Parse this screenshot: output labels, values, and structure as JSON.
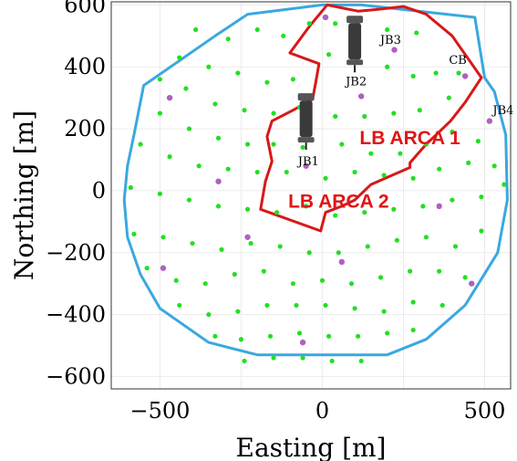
{
  "chart_data": {
    "type": "scatter",
    "xlabel": "Easting [m]",
    "ylabel": "Northing [m]",
    "xlim": [
      -650,
      580
    ],
    "ylim": [
      -640,
      610
    ],
    "x_ticks": [
      -500,
      0,
      500
    ],
    "y_ticks": [
      600,
      400,
      200,
      0,
      -200,
      -400,
      -600
    ],
    "grid": true,
    "colors": {
      "detection_units": "#22e022",
      "special_units": "#b060c0",
      "footprint_outline": "#3aa8e0",
      "zone_outline": "#d81818",
      "label_red": "#e01515"
    },
    "region_labels": [
      {
        "text": "LB ARCA 1",
        "x": 115,
        "y": 150
      },
      {
        "text": "LB ARCA 2",
        "x": -105,
        "y": -55
      }
    ],
    "annotations": [
      {
        "text": "JB3",
        "x": 178,
        "y": 475
      },
      {
        "text": "CB",
        "x": 390,
        "y": 410
      },
      {
        "text": "JB2",
        "x": 72,
        "y": 340
      },
      {
        "text": "JB4",
        "x": 525,
        "y": 248
      },
      {
        "text": "JB1",
        "x": -75,
        "y": 82
      }
    ],
    "series": [
      {
        "name": "",
        "marker": "green-dot",
        "points": [
          [
            -390,
            520
          ],
          [
            -290,
            490
          ],
          [
            -200,
            520
          ],
          [
            -120,
            500
          ],
          [
            -40,
            540
          ],
          [
            40,
            540
          ],
          [
            110,
            540
          ],
          [
            200,
            520
          ],
          [
            290,
            510
          ],
          [
            -440,
            430
          ],
          [
            -350,
            400
          ],
          [
            -260,
            380
          ],
          [
            -170,
            350
          ],
          [
            -90,
            360
          ],
          [
            20,
            440
          ],
          [
            110,
            430
          ],
          [
            200,
            400
          ],
          [
            280,
            370
          ],
          [
            350,
            380
          ],
          [
            420,
            380
          ],
          [
            -500,
            360
          ],
          [
            -420,
            330
          ],
          [
            -330,
            280
          ],
          [
            -240,
            260
          ],
          [
            -150,
            250
          ],
          [
            -70,
            270
          ],
          [
            40,
            240
          ],
          [
            130,
            240
          ],
          [
            220,
            250
          ],
          [
            300,
            260
          ],
          [
            390,
            300
          ],
          [
            -500,
            250
          ],
          [
            -410,
            200
          ],
          [
            -320,
            170
          ],
          [
            -230,
            150
          ],
          [
            -150,
            150
          ],
          [
            -60,
            140
          ],
          [
            60,
            150
          ],
          [
            150,
            120
          ],
          [
            240,
            120
          ],
          [
            320,
            150
          ],
          [
            400,
            190
          ],
          [
            480,
            160
          ],
          [
            -560,
            150
          ],
          [
            -470,
            110
          ],
          [
            -380,
            80
          ],
          [
            -290,
            70
          ],
          [
            -200,
            60
          ],
          [
            -110,
            60
          ],
          [
            10,
            40
          ],
          [
            100,
            60
          ],
          [
            190,
            50
          ],
          [
            280,
            40
          ],
          [
            360,
            70
          ],
          [
            450,
            90
          ],
          [
            530,
            80
          ],
          [
            -590,
            10
          ],
          [
            -500,
            -10
          ],
          [
            -410,
            -30
          ],
          [
            -320,
            -50
          ],
          [
            -230,
            -60
          ],
          [
            -140,
            -70
          ],
          [
            -50,
            -50
          ],
          [
            40,
            -80
          ],
          [
            130,
            -70
          ],
          [
            220,
            -60
          ],
          [
            310,
            -50
          ],
          [
            400,
            -30
          ],
          [
            490,
            -20
          ],
          [
            560,
            20
          ],
          [
            -580,
            -140
          ],
          [
            -490,
            -150
          ],
          [
            -400,
            -170
          ],
          [
            -310,
            -190
          ],
          [
            -220,
            -170
          ],
          [
            -130,
            -180
          ],
          [
            -40,
            -200
          ],
          [
            50,
            -200
          ],
          [
            140,
            -180
          ],
          [
            230,
            -160
          ],
          [
            320,
            -150
          ],
          [
            410,
            -180
          ],
          [
            490,
            -130
          ],
          [
            -540,
            -250
          ],
          [
            -450,
            -290
          ],
          [
            -360,
            -300
          ],
          [
            -270,
            -270
          ],
          [
            -180,
            -260
          ],
          [
            -90,
            -300
          ],
          [
            0,
            -290
          ],
          [
            90,
            -300
          ],
          [
            180,
            -280
          ],
          [
            270,
            -260
          ],
          [
            360,
            -260
          ],
          [
            440,
            -280
          ],
          [
            -440,
            -370
          ],
          [
            -350,
            -400
          ],
          [
            -260,
            -390
          ],
          [
            -170,
            -370
          ],
          [
            -80,
            -370
          ],
          [
            10,
            -370
          ],
          [
            100,
            -380
          ],
          [
            190,
            -390
          ],
          [
            280,
            -360
          ],
          [
            370,
            -370
          ],
          [
            -330,
            -470
          ],
          [
            -250,
            -480
          ],
          [
            -160,
            -470
          ],
          [
            -70,
            -460
          ],
          [
            20,
            -470
          ],
          [
            110,
            -470
          ],
          [
            200,
            -460
          ],
          [
            280,
            -450
          ],
          [
            -240,
            -550
          ],
          [
            -150,
            -540
          ],
          [
            -60,
            -540
          ],
          [
            30,
            -550
          ],
          [
            120,
            -550
          ]
        ]
      },
      {
        "name": "",
        "marker": "purple-dot",
        "points": [
          [
            -470,
            300
          ],
          [
            -320,
            30
          ],
          [
            -230,
            -150
          ],
          [
            -490,
            -250
          ],
          [
            -60,
            -490
          ],
          [
            60,
            -230
          ],
          [
            360,
            -50
          ],
          [
            460,
            -300
          ],
          [
            515,
            225
          ],
          [
            440,
            370
          ],
          [
            222,
            455
          ],
          [
            120,
            305
          ],
          [
            10,
            560
          ],
          [
            -50,
            80
          ]
        ]
      }
    ],
    "outlines": [
      {
        "name": "",
        "color": "footprint_outline",
        "points": [
          [
            -330,
            500
          ],
          [
            -230,
            570
          ],
          [
            0,
            600
          ],
          [
            120,
            600
          ],
          [
            470,
            560
          ],
          [
            500,
            365
          ],
          [
            530,
            320
          ],
          [
            565,
            180
          ],
          [
            570,
            -30
          ],
          [
            540,
            -200
          ],
          [
            440,
            -370
          ],
          [
            320,
            -480
          ],
          [
            200,
            -530
          ],
          [
            -200,
            -530
          ],
          [
            -350,
            -490
          ],
          [
            -500,
            -380
          ],
          [
            -560,
            -270
          ],
          [
            -600,
            -150
          ],
          [
            -610,
            -30
          ],
          [
            -600,
            80
          ],
          [
            -580,
            180
          ],
          [
            -550,
            340
          ]
        ]
      },
      {
        "name": "",
        "color": "zone_outline",
        "points": [
          [
            15,
            600
          ],
          [
            110,
            580
          ],
          [
            165,
            585
          ],
          [
            250,
            595
          ],
          [
            320,
            570
          ],
          [
            400,
            500
          ],
          [
            490,
            365
          ],
          [
            440,
            285
          ],
          [
            395,
            225
          ],
          [
            350,
            180
          ],
          [
            320,
            150
          ],
          [
            270,
            90
          ],
          [
            270,
            75
          ],
          [
            215,
            50
          ],
          [
            150,
            20
          ],
          [
            100,
            -30
          ],
          [
            60,
            -50
          ],
          [
            10,
            -70
          ],
          [
            -5,
            -130
          ],
          [
            -190,
            -60
          ],
          [
            -175,
            30
          ],
          [
            -155,
            95
          ],
          [
            -170,
            175
          ],
          [
            -155,
            225
          ],
          [
            -90,
            260
          ],
          [
            -30,
            295
          ],
          [
            -20,
            350
          ],
          [
            -10,
            410
          ],
          [
            -100,
            445
          ],
          [
            -40,
            530
          ]
        ]
      }
    ]
  }
}
